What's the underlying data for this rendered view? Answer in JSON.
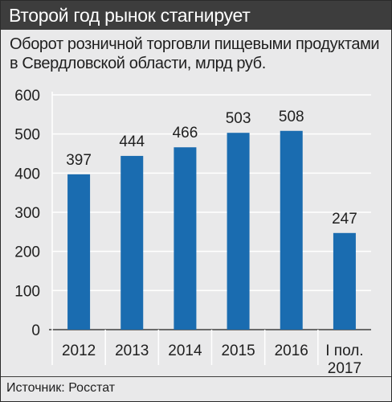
{
  "header": {
    "title": "Второй год рынок стагнирует"
  },
  "chart_data": {
    "type": "bar",
    "title": "Оборот розничной торговли пищевыми продуктами в Свердловской области, млрд руб.",
    "categories": [
      [
        "2012"
      ],
      [
        "2013"
      ],
      [
        "2014"
      ],
      [
        "2015"
      ],
      [
        "2016"
      ],
      [
        "I пол.",
        "2017"
      ]
    ],
    "values": [
      397,
      444,
      466,
      503,
      508,
      247
    ],
    "data_labels": [
      "397",
      "444",
      "466",
      "503",
      "508",
      "247"
    ],
    "ylim": [
      0,
      600
    ],
    "yticks": [
      "0",
      "100",
      "200",
      "300",
      "400",
      "500",
      "600"
    ],
    "grid": true,
    "bar_color": "#1a6cb0",
    "grid_color": "#ffffff"
  },
  "footer": {
    "source": "Источник: Росстат"
  }
}
